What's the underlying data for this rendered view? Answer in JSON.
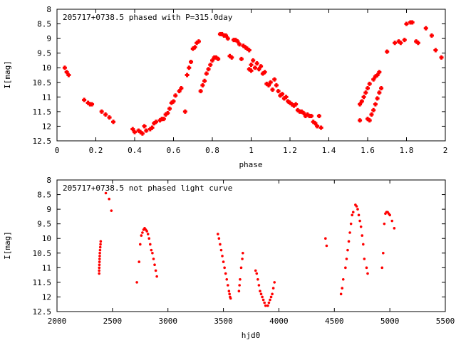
{
  "chart_data": [
    {
      "type": "scatter",
      "title": "205717+0738.5 phased with P=315.0day",
      "xlabel": "phase",
      "ylabel": "I[mag]",
      "xlim": [
        0,
        2
      ],
      "ylim": [
        12.5,
        8
      ],
      "y_inverted": true,
      "grid": false,
      "color": "#ff0000",
      "xticks": [
        "0",
        "0.2",
        "0.4",
        "0.6",
        "0.8",
        "1",
        "1.2",
        "1.4",
        "1.6",
        "1.8",
        "2"
      ],
      "yticks": [
        "8",
        "8.5",
        "9",
        "9.5",
        "10",
        "10.5",
        "11",
        "11.5",
        "12",
        "12.5"
      ],
      "series": [
        {
          "points": [
            [
              0.04,
              10.0
            ],
            [
              0.05,
              10.15
            ],
            [
              0.06,
              10.25
            ],
            [
              0.14,
              11.1
            ],
            [
              0.16,
              11.2
            ],
            [
              0.17,
              11.25
            ],
            [
              0.18,
              11.25
            ],
            [
              0.23,
              11.5
            ],
            [
              0.25,
              11.6
            ],
            [
              0.27,
              11.7
            ],
            [
              0.29,
              11.85
            ],
            [
              0.39,
              12.1
            ],
            [
              0.4,
              12.2
            ],
            [
              0.42,
              12.15
            ],
            [
              0.43,
              12.2
            ],
            [
              0.44,
              12.25
            ],
            [
              0.45,
              12.0
            ],
            [
              0.46,
              12.15
            ],
            [
              0.48,
              12.1
            ],
            [
              0.49,
              12.05
            ],
            [
              0.5,
              11.9
            ],
            [
              0.51,
              11.85
            ],
            [
              0.53,
              11.8
            ],
            [
              0.54,
              11.75
            ],
            [
              0.55,
              11.75
            ],
            [
              0.56,
              11.6
            ],
            [
              0.57,
              11.55
            ],
            [
              0.58,
              11.4
            ],
            [
              0.59,
              11.2
            ],
            [
              0.6,
              11.15
            ],
            [
              0.61,
              10.95
            ],
            [
              0.63,
              10.8
            ],
            [
              0.64,
              10.7
            ],
            [
              0.66,
              11.5
            ],
            [
              0.67,
              10.25
            ],
            [
              0.68,
              10.0
            ],
            [
              0.69,
              9.8
            ],
            [
              0.7,
              9.35
            ],
            [
              0.71,
              9.3
            ],
            [
              0.72,
              9.15
            ],
            [
              0.73,
              9.1
            ],
            [
              0.74,
              10.8
            ],
            [
              0.75,
              10.6
            ],
            [
              0.76,
              10.45
            ],
            [
              0.77,
              10.2
            ],
            [
              0.78,
              10.05
            ],
            [
              0.79,
              9.9
            ],
            [
              0.8,
              9.75
            ],
            [
              0.81,
              9.65
            ],
            [
              0.82,
              9.65
            ],
            [
              0.83,
              9.7
            ],
            [
              0.84,
              8.85
            ],
            [
              0.85,
              8.85
            ],
            [
              0.86,
              8.9
            ],
            [
              0.87,
              8.9
            ],
            [
              0.88,
              9.0
            ],
            [
              0.89,
              9.6
            ],
            [
              0.9,
              9.65
            ],
            [
              0.91,
              9.05
            ],
            [
              0.92,
              9.05
            ],
            [
              0.93,
              9.1
            ],
            [
              0.94,
              9.2
            ],
            [
              0.95,
              9.7
            ],
            [
              0.96,
              9.25
            ],
            [
              0.97,
              9.3
            ],
            [
              0.98,
              9.35
            ],
            [
              0.99,
              9.4
            ],
            [
              0.99,
              10.05
            ],
            [
              1.0,
              9.9
            ],
            [
              1.0,
              10.1
            ],
            [
              1.01,
              9.75
            ],
            [
              1.02,
              10.0
            ],
            [
              1.03,
              9.85
            ],
            [
              1.04,
              10.05
            ],
            [
              1.05,
              9.95
            ],
            [
              1.06,
              10.2
            ],
            [
              1.07,
              10.15
            ],
            [
              1.08,
              10.55
            ],
            [
              1.09,
              10.6
            ],
            [
              1.1,
              10.5
            ],
            [
              1.11,
              10.75
            ],
            [
              1.12,
              10.4
            ],
            [
              1.13,
              10.6
            ],
            [
              1.14,
              10.8
            ],
            [
              1.15,
              10.95
            ],
            [
              1.16,
              10.9
            ],
            [
              1.17,
              11.05
            ],
            [
              1.18,
              11.0
            ],
            [
              1.19,
              11.15
            ],
            [
              1.2,
              11.2
            ],
            [
              1.21,
              11.25
            ],
            [
              1.22,
              11.3
            ],
            [
              1.23,
              11.25
            ],
            [
              1.24,
              11.45
            ],
            [
              1.25,
              11.5
            ],
            [
              1.26,
              11.5
            ],
            [
              1.27,
              11.55
            ],
            [
              1.28,
              11.65
            ],
            [
              1.29,
              11.6
            ],
            [
              1.3,
              11.65
            ],
            [
              1.31,
              11.65
            ],
            [
              1.32,
              11.85
            ],
            [
              1.33,
              11.9
            ],
            [
              1.34,
              12.0
            ],
            [
              1.35,
              11.65
            ],
            [
              1.36,
              12.05
            ],
            [
              1.56,
              11.8
            ],
            [
              1.56,
              11.25
            ],
            [
              1.57,
              11.15
            ],
            [
              1.58,
              11.0
            ],
            [
              1.59,
              10.85
            ],
            [
              1.6,
              10.7
            ],
            [
              1.6,
              11.75
            ],
            [
              1.61,
              11.8
            ],
            [
              1.61,
              10.55
            ],
            [
              1.62,
              11.6
            ],
            [
              1.63,
              11.45
            ],
            [
              1.63,
              10.4
            ],
            [
              1.64,
              11.25
            ],
            [
              1.64,
              10.3
            ],
            [
              1.65,
              11.05
            ],
            [
              1.65,
              10.25
            ],
            [
              1.66,
              10.85
            ],
            [
              1.66,
              10.15
            ],
            [
              1.67,
              10.7
            ],
            [
              1.7,
              9.45
            ],
            [
              1.74,
              9.15
            ],
            [
              1.76,
              9.1
            ],
            [
              1.77,
              9.15
            ],
            [
              1.79,
              9.05
            ],
            [
              1.8,
              8.5
            ],
            [
              1.82,
              8.45
            ],
            [
              1.83,
              8.45
            ],
            [
              1.85,
              9.1
            ],
            [
              1.86,
              9.15
            ],
            [
              1.9,
              8.65
            ],
            [
              1.93,
              8.9
            ],
            [
              1.95,
              9.4
            ],
            [
              1.98,
              9.65
            ]
          ]
        }
      ]
    },
    {
      "type": "scatter",
      "title": "205717+0738.5 not phased light curve",
      "xlabel": "hjd0",
      "ylabel": "I[mag]",
      "xlim": [
        2000,
        5500
      ],
      "ylim": [
        12.5,
        8
      ],
      "y_inverted": true,
      "grid": false,
      "color": "#ff0000",
      "xticks": [
        "2000",
        "2500",
        "3000",
        "3500",
        "4000",
        "4500",
        "5000",
        "5500"
      ],
      "yticks": [
        "8",
        "8.5",
        "9",
        "9.5",
        "10",
        "10.5",
        "11",
        "11.5",
        "12",
        "12.5"
      ],
      "series": [
        {
          "points": [
            [
              2380,
              11.2
            ],
            [
              2380,
              11.1
            ],
            [
              2381,
              11.0
            ],
            [
              2382,
              10.9
            ],
            [
              2383,
              10.8
            ],
            [
              2384,
              10.7
            ],
            [
              2385,
              10.6
            ],
            [
              2386,
              10.5
            ],
            [
              2388,
              10.4
            ],
            [
              2390,
              10.3
            ],
            [
              2392,
              10.2
            ],
            [
              2394,
              10.1
            ],
            [
              2440,
              8.45
            ],
            [
              2470,
              8.65
            ],
            [
              2490,
              9.05
            ],
            [
              2720,
              11.5
            ],
            [
              2740,
              10.8
            ],
            [
              2750,
              10.2
            ],
            [
              2760,
              9.9
            ],
            [
              2770,
              9.8
            ],
            [
              2780,
              9.7
            ],
            [
              2790,
              9.65
            ],
            [
              2800,
              9.7
            ],
            [
              2810,
              9.75
            ],
            [
              2820,
              9.85
            ],
            [
              2830,
              10.0
            ],
            [
              2840,
              10.2
            ],
            [
              2850,
              10.4
            ],
            [
              2860,
              10.5
            ],
            [
              2870,
              10.7
            ],
            [
              2880,
              10.9
            ],
            [
              2890,
              11.1
            ],
            [
              2900,
              11.3
            ],
            [
              3450,
              9.85
            ],
            [
              3460,
              10.0
            ],
            [
              3470,
              10.2
            ],
            [
              3480,
              10.4
            ],
            [
              3490,
              10.6
            ],
            [
              3500,
              10.8
            ],
            [
              3510,
              11.0
            ],
            [
              3520,
              11.2
            ],
            [
              3530,
              11.4
            ],
            [
              3540,
              11.6
            ],
            [
              3550,
              11.8
            ],
            [
              3555,
              11.9
            ],
            [
              3560,
              12.0
            ],
            [
              3565,
              12.05
            ],
            [
              3640,
              11.8
            ],
            [
              3645,
              11.6
            ],
            [
              3650,
              11.4
            ],
            [
              3660,
              11.0
            ],
            [
              3670,
              10.7
            ],
            [
              3675,
              10.5
            ],
            [
              3790,
              11.1
            ],
            [
              3800,
              11.2
            ],
            [
              3810,
              11.4
            ],
            [
              3820,
              11.6
            ],
            [
              3830,
              11.8
            ],
            [
              3840,
              11.9
            ],
            [
              3850,
              12.0
            ],
            [
              3860,
              12.1
            ],
            [
              3870,
              12.2
            ],
            [
              3880,
              12.3
            ],
            [
              3900,
              12.3
            ],
            [
              3910,
              12.2
            ],
            [
              3920,
              12.1
            ],
            [
              3930,
              12.0
            ],
            [
              3940,
              11.9
            ],
            [
              3950,
              11.7
            ],
            [
              3960,
              11.5
            ],
            [
              4420,
              10.0
            ],
            [
              4430,
              10.25
            ],
            [
              4560,
              11.9
            ],
            [
              4570,
              11.7
            ],
            [
              4580,
              11.4
            ],
            [
              4600,
              11.0
            ],
            [
              4610,
              10.7
            ],
            [
              4620,
              10.4
            ],
            [
              4630,
              10.1
            ],
            [
              4640,
              9.8
            ],
            [
              4650,
              9.5
            ],
            [
              4660,
              9.2
            ],
            [
              4670,
              9.1
            ],
            [
              4690,
              8.85
            ],
            [
              4700,
              8.9
            ],
            [
              4710,
              9.0
            ],
            [
              4720,
              9.2
            ],
            [
              4730,
              9.4
            ],
            [
              4740,
              9.6
            ],
            [
              4750,
              9.9
            ],
            [
              4760,
              10.2
            ],
            [
              4770,
              10.7
            ],
            [
              4790,
              11.0
            ],
            [
              4800,
              11.2
            ],
            [
              4930,
              11.0
            ],
            [
              4940,
              10.5
            ],
            [
              4950,
              9.5
            ],
            [
              4960,
              9.15
            ],
            [
              4970,
              9.1
            ],
            [
              4980,
              9.1
            ],
            [
              4990,
              9.15
            ],
            [
              5000,
              9.2
            ],
            [
              5020,
              9.4
            ],
            [
              5040,
              9.65
            ]
          ]
        }
      ]
    }
  ]
}
